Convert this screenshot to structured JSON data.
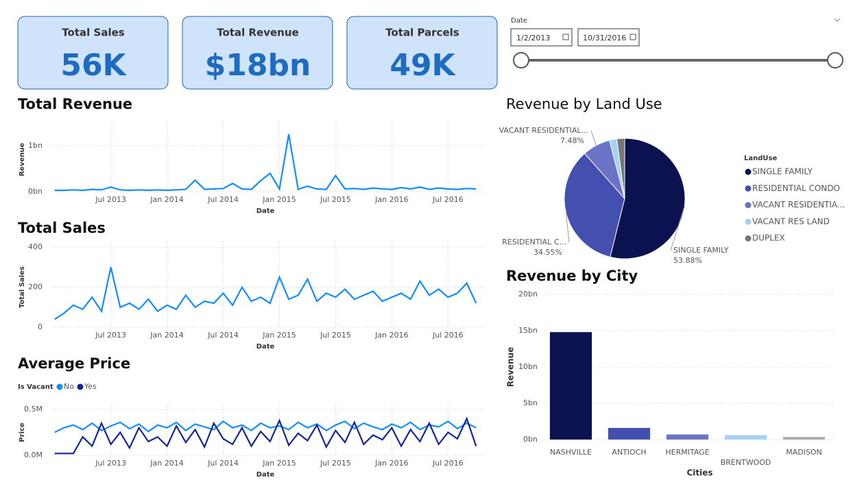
{
  "cards": [
    {
      "title": "Total Sales",
      "value": "56K"
    },
    {
      "title": "Total Revenue",
      "value": "$18bn"
    },
    {
      "title": "Total Parcels",
      "value": "49K"
    }
  ],
  "slicer": {
    "label": "Date",
    "start": "1/2/2013",
    "end": "10/31/2016"
  },
  "chart_data": [
    {
      "type": "line",
      "title": "Total Revenue",
      "xlabel": "Date",
      "ylabel": "Revenue",
      "x": [
        "2013-01",
        "2013-02",
        "2013-03",
        "2013-04",
        "2013-05",
        "2013-06",
        "2013-07",
        "2013-08",
        "2013-09",
        "2013-10",
        "2013-11",
        "2013-12",
        "2014-01",
        "2014-02",
        "2014-03",
        "2014-04",
        "2014-05",
        "2014-06",
        "2014-07",
        "2014-08",
        "2014-09",
        "2014-10",
        "2014-11",
        "2014-12",
        "2015-01",
        "2015-02",
        "2015-03",
        "2015-04",
        "2015-05",
        "2015-06",
        "2015-07",
        "2015-08",
        "2015-09",
        "2015-10",
        "2015-11",
        "2015-12",
        "2016-01",
        "2016-02",
        "2016-03",
        "2016-04",
        "2016-05",
        "2016-06",
        "2016-07",
        "2016-08",
        "2016-09",
        "2016-10"
      ],
      "series": [
        {
          "name": "Revenue",
          "color": "#118dff",
          "values": [
            0.03,
            0.03,
            0.04,
            0.03,
            0.05,
            0.04,
            0.1,
            0.04,
            0.03,
            0.04,
            0.03,
            0.04,
            0.03,
            0.04,
            0.05,
            0.25,
            0.05,
            0.06,
            0.07,
            0.18,
            0.06,
            0.05,
            0.24,
            0.4,
            0.06,
            1.25,
            0.05,
            0.12,
            0.06,
            0.05,
            0.35,
            0.06,
            0.07,
            0.05,
            0.08,
            0.06,
            0.05,
            0.09,
            0.06,
            0.1,
            0.05,
            0.08,
            0.06,
            0.05,
            0.07,
            0.06
          ]
        }
      ],
      "xlim": [
        "2012-12",
        "2016-11"
      ],
      "xticks": [
        {
          "value": "2013-07",
          "label": "Jul 2013"
        },
        {
          "value": "2014-01",
          "label": "Jan 2014"
        },
        {
          "value": "2014-07",
          "label": "Jul 2014"
        },
        {
          "value": "2015-01",
          "label": "Jan 2015"
        },
        {
          "value": "2015-07",
          "label": "Jul 2015"
        },
        {
          "value": "2016-01",
          "label": "Jan 2016"
        },
        {
          "value": "2016-07",
          "label": "Jul 2016"
        }
      ],
      "ylim": [
        0,
        1.4
      ],
      "yticks": [
        {
          "value": 0,
          "label": "0bn"
        },
        {
          "value": 1,
          "label": "1bn"
        }
      ],
      "grid": true
    },
    {
      "type": "line",
      "title": "Total Sales",
      "xlabel": "Date",
      "ylabel": "Total Sales",
      "x": [
        "2013-01",
        "2013-02",
        "2013-03",
        "2013-04",
        "2013-05",
        "2013-06",
        "2013-07",
        "2013-08",
        "2013-09",
        "2013-10",
        "2013-11",
        "2013-12",
        "2014-01",
        "2014-02",
        "2014-03",
        "2014-04",
        "2014-05",
        "2014-06",
        "2014-07",
        "2014-08",
        "2014-09",
        "2014-10",
        "2014-11",
        "2014-12",
        "2015-01",
        "2015-02",
        "2015-03",
        "2015-04",
        "2015-05",
        "2015-06",
        "2015-07",
        "2015-08",
        "2015-09",
        "2015-10",
        "2015-11",
        "2015-12",
        "2016-01",
        "2016-02",
        "2016-03",
        "2016-04",
        "2016-05",
        "2016-06",
        "2016-07",
        "2016-08",
        "2016-09",
        "2016-10"
      ],
      "series": [
        {
          "name": "Total Sales",
          "color": "#118dff",
          "values": [
            40,
            70,
            110,
            90,
            150,
            80,
            300,
            100,
            120,
            90,
            140,
            80,
            110,
            90,
            160,
            100,
            130,
            120,
            170,
            110,
            200,
            130,
            150,
            120,
            250,
            140,
            160,
            240,
            130,
            170,
            150,
            190,
            140,
            160,
            180,
            130,
            150,
            170,
            140,
            230,
            160,
            190,
            150,
            170,
            220,
            120
          ]
        }
      ],
      "xlim": [
        "2012-12",
        "2016-11"
      ],
      "xticks": [
        {
          "value": "2013-07",
          "label": "Jul 2013"
        },
        {
          "value": "2014-01",
          "label": "Jan 2014"
        },
        {
          "value": "2014-07",
          "label": "Jul 2014"
        },
        {
          "value": "2015-01",
          "label": "Jan 2015"
        },
        {
          "value": "2015-07",
          "label": "Jul 2015"
        },
        {
          "value": "2016-01",
          "label": "Jan 2016"
        },
        {
          "value": "2016-07",
          "label": "Jul 2016"
        }
      ],
      "ylim": [
        0,
        400
      ],
      "yticks": [
        0,
        200,
        400
      ],
      "grid": true
    },
    {
      "type": "line",
      "title": "Average Price",
      "xlabel": "Date",
      "ylabel": "Price",
      "legend_title": "Is Vacant",
      "x": [
        "2013-01",
        "2013-02",
        "2013-03",
        "2013-04",
        "2013-05",
        "2013-06",
        "2013-07",
        "2013-08",
        "2013-09",
        "2013-10",
        "2013-11",
        "2013-12",
        "2014-01",
        "2014-02",
        "2014-03",
        "2014-04",
        "2014-05",
        "2014-06",
        "2014-07",
        "2014-08",
        "2014-09",
        "2014-10",
        "2014-11",
        "2014-12",
        "2015-01",
        "2015-02",
        "2015-03",
        "2015-04",
        "2015-05",
        "2015-06",
        "2015-07",
        "2015-08",
        "2015-09",
        "2015-10",
        "2015-11",
        "2015-12",
        "2016-01",
        "2016-02",
        "2016-03",
        "2016-04",
        "2016-05",
        "2016-06",
        "2016-07",
        "2016-08",
        "2016-09",
        "2016-10"
      ],
      "series": [
        {
          "name": "No",
          "color": "#118dff",
          "values": [
            0.25,
            0.3,
            0.33,
            0.28,
            0.35,
            0.27,
            0.32,
            0.36,
            0.29,
            0.34,
            0.26,
            0.33,
            0.3,
            0.36,
            0.27,
            0.34,
            0.31,
            0.28,
            0.37,
            0.3,
            0.33,
            0.27,
            0.35,
            0.3,
            0.32,
            0.28,
            0.36,
            0.3,
            0.34,
            0.27,
            0.33,
            0.37,
            0.29,
            0.35,
            0.31,
            0.28,
            0.34,
            0.3,
            0.36,
            0.28,
            0.33,
            0.31,
            0.37,
            0.29,
            0.35,
            0.3
          ]
        },
        {
          "name": "Yes",
          "color": "#12239e",
          "values": [
            0.02,
            0.02,
            0.02,
            0.2,
            0.1,
            0.35,
            0.12,
            0.25,
            0.08,
            0.3,
            0.15,
            0.2,
            0.1,
            0.32,
            0.14,
            0.28,
            0.09,
            0.35,
            0.18,
            0.12,
            0.3,
            0.1,
            0.26,
            0.15,
            0.38,
            0.11,
            0.24,
            0.16,
            0.33,
            0.09,
            0.27,
            0.14,
            0.36,
            0.12,
            0.22,
            0.17,
            0.3,
            0.1,
            0.28,
            0.15,
            0.35,
            0.12,
            0.25,
            0.18,
            0.4,
            0.1
          ]
        }
      ],
      "xlim": [
        "2012-12",
        "2016-11"
      ],
      "xticks": [
        {
          "value": "2013-07",
          "label": "Jul 2013"
        },
        {
          "value": "2014-01",
          "label": "Jan 2014"
        },
        {
          "value": "2014-07",
          "label": "Jul 2014"
        },
        {
          "value": "2015-01",
          "label": "Jan 2015"
        },
        {
          "value": "2015-07",
          "label": "Jul 2015"
        },
        {
          "value": "2016-01",
          "label": "Jan 2016"
        },
        {
          "value": "2016-07",
          "label": "Jul 2016"
        }
      ],
      "ylim": [
        0,
        0.5
      ],
      "yticks": [
        {
          "value": 0,
          "label": "0.0M"
        },
        {
          "value": 0.5,
          "label": "0.5M"
        }
      ],
      "grid": true
    },
    {
      "type": "pie",
      "title": "Revenue by Land Use",
      "legend_title": "LandUse",
      "categories": [
        "SINGLE FAMILY",
        "RESIDENTIAL CONDO",
        "VACANT RESIDENTIA...",
        "VACANT RES LAND",
        "DUPLEX"
      ],
      "values": [
        53.88,
        34.55,
        7.48,
        2.0,
        2.09
      ],
      "value_labels": [
        "53.88%",
        "34.55%",
        "7.48%",
        null,
        null
      ],
      "slice_labels": [
        "SINGLE FAMILY",
        "RESIDENTIAL C...",
        "VACANT RESIDENTIAL...",
        null,
        null
      ],
      "colors": [
        "#0c1250",
        "#4350b0",
        "#6b73c6",
        "#a7d0f5",
        "#777777"
      ]
    },
    {
      "type": "bar",
      "title": "Revenue by City",
      "xlabel": "Cities",
      "ylabel": "Revenue",
      "categories": [
        "NASHVILLE",
        "ANTIOCH",
        "HERMITAGE",
        "BRENTWOOD",
        "MADISON"
      ],
      "values": [
        14.8,
        1.6,
        0.7,
        0.6,
        0.35
      ],
      "colors": [
        "#0c1250",
        "#4350b0",
        "#6b73c6",
        "#a7d0f5",
        "#aaaaaa"
      ],
      "ylim": [
        0,
        20
      ],
      "yticks": [
        {
          "value": 0,
          "label": "0bn"
        },
        {
          "value": 5,
          "label": "5bn"
        },
        {
          "value": 10,
          "label": "10bn"
        },
        {
          "value": 15,
          "label": "15bn"
        },
        {
          "value": 20,
          "label": "20bn"
        }
      ],
      "grid": true
    }
  ]
}
